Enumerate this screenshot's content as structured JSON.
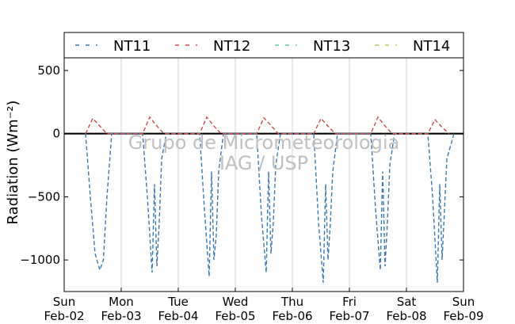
{
  "watermark": {
    "line1": "Grupo de Micrometeorologia",
    "line2": "IAG / USP"
  },
  "chart_data": {
    "type": "line",
    "ylabel": "Radiation (Wm⁻²)",
    "ylim": [
      -1250,
      600
    ],
    "xlim": [
      "2014-02-02",
      "2014-02-09"
    ],
    "yticks": [
      500,
      0,
      -500,
      -1000
    ],
    "ytick_labels": [
      "500",
      "0",
      "−500",
      "−1000"
    ],
    "x_ticks": [
      {
        "date": "2014-02-02",
        "day": "Sun",
        "label": "Feb-02"
      },
      {
        "date": "2014-02-03",
        "day": "Mon",
        "label": "Feb-03"
      },
      {
        "date": "2014-02-04",
        "day": "Tue",
        "label": "Feb-04"
      },
      {
        "date": "2014-02-05",
        "day": "Wed",
        "label": "Feb-05"
      },
      {
        "date": "2014-02-06",
        "day": "Thu",
        "label": "Feb-06"
      },
      {
        "date": "2014-02-07",
        "day": "Fri",
        "label": "Feb-07"
      },
      {
        "date": "2014-02-08",
        "day": "Sat",
        "label": "Feb-08"
      },
      {
        "date": "2014-02-09",
        "day": "Sun",
        "label": "Feb-09"
      }
    ],
    "grid": "vertical",
    "legend_position": "top",
    "series": [
      {
        "name": "NT11",
        "color": "#3a77b0",
        "style": "dashed",
        "x": [
          "2014-02-02 09:00",
          "2014-02-02 11:00",
          "2014-02-02 13:00",
          "2014-02-02 15:00",
          "2014-02-02 16:30",
          "2014-02-02 18:00",
          "2014-02-02 20:00",
          "2014-02-03 09:00",
          "2014-02-03 11:00",
          "2014-02-03 13:00",
          "2014-02-03 14:00",
          "2014-02-03 15:00",
          "2014-02-03 16:00",
          "2014-02-03 17:00",
          "2014-02-03 19:00",
          "2014-02-04 09:00",
          "2014-02-04 11:00",
          "2014-02-04 13:00",
          "2014-02-04 14:00",
          "2014-02-04 15:00",
          "2014-02-04 16:00",
          "2014-02-04 17:00",
          "2014-02-04 19:00",
          "2014-02-05 09:00",
          "2014-02-05 11:00",
          "2014-02-05 13:00",
          "2014-02-05 14:00",
          "2014-02-05 15:00",
          "2014-02-05 16:00",
          "2014-02-05 17:00",
          "2014-02-05 19:00",
          "2014-02-06 09:00",
          "2014-02-06 11:00",
          "2014-02-06 13:00",
          "2014-02-06 14:00",
          "2014-02-06 15:00",
          "2014-02-06 16:00",
          "2014-02-06 17:00",
          "2014-02-06 19:00",
          "2014-02-07 09:00",
          "2014-02-07 11:00",
          "2014-02-07 13:00",
          "2014-02-07 14:00",
          "2014-02-07 15:00",
          "2014-02-07 16:00",
          "2014-02-07 17:00",
          "2014-02-07 19:00",
          "2014-02-08 09:00",
          "2014-02-08 11:00",
          "2014-02-08 13:00",
          "2014-02-08 14:00",
          "2014-02-08 15:00",
          "2014-02-08 16:00",
          "2014-02-08 17:00",
          "2014-02-08 20:00"
        ],
        "values": [
          0,
          -500,
          -950,
          -1080,
          -1000,
          -500,
          0,
          0,
          -500,
          -1100,
          -400,
          -1050,
          -700,
          -200,
          0,
          0,
          -600,
          -1130,
          -300,
          -1000,
          -800,
          -300,
          0,
          0,
          -650,
          -1100,
          -300,
          -950,
          -700,
          -250,
          0,
          0,
          -700,
          -1180,
          -400,
          -1000,
          -700,
          -300,
          0,
          0,
          -600,
          -1080,
          -300,
          -1050,
          -700,
          -250,
          0,
          0,
          -500,
          -1180,
          -400,
          -1000,
          -600,
          -200,
          0
        ]
      },
      {
        "name": "NT12",
        "color": "#c9504e",
        "style": "dashed",
        "x": [
          "2014-02-02 09:00",
          "2014-02-02 12:00",
          "2014-02-02 15:00",
          "2014-02-02 18:00",
          "2014-02-03 09:00",
          "2014-02-03 12:00",
          "2014-02-03 15:00",
          "2014-02-03 18:00",
          "2014-02-04 09:00",
          "2014-02-04 12:00",
          "2014-02-04 15:00",
          "2014-02-04 18:00",
          "2014-02-05 09:00",
          "2014-02-05 12:00",
          "2014-02-05 15:00",
          "2014-02-05 18:00",
          "2014-02-06 09:00",
          "2014-02-06 12:00",
          "2014-02-06 15:00",
          "2014-02-06 18:00",
          "2014-02-07 09:00",
          "2014-02-07 12:00",
          "2014-02-07 15:00",
          "2014-02-07 18:00",
          "2014-02-08 09:00",
          "2014-02-08 12:00",
          "2014-02-08 15:00",
          "2014-02-08 18:00"
        ],
        "values": [
          0,
          120,
          60,
          0,
          0,
          130,
          60,
          0,
          0,
          130,
          60,
          0,
          0,
          125,
          65,
          0,
          0,
          120,
          60,
          0,
          0,
          130,
          60,
          0,
          0,
          110,
          50,
          0
        ]
      },
      {
        "name": "NT13",
        "color": "#6bc4b3",
        "style": "dashed",
        "x": [],
        "values": []
      },
      {
        "name": "NT14",
        "color": "#b9c95a",
        "style": "dashed",
        "x": [],
        "values": []
      }
    ]
  }
}
